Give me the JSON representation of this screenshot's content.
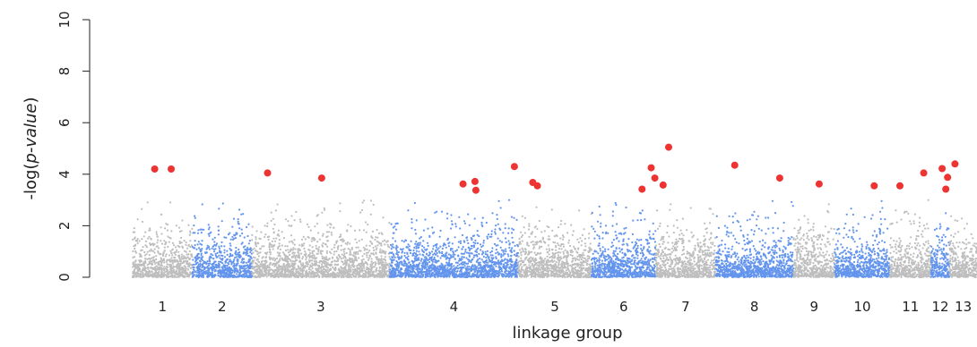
{
  "chart_data": {
    "type": "scatter",
    "title": "",
    "xlabel": "linkage group",
    "ylabel_prefix": "-log(",
    "ylabel_italic": "p-value",
    "ylabel_suffix": ")",
    "ylim": [
      0,
      10
    ],
    "yticks": [
      0,
      2,
      4,
      6,
      8,
      10
    ],
    "grid": false,
    "legend": "none",
    "colors": {
      "odd_group": "#bebebe",
      "even_group": "#6495ed",
      "significant": "#ee3333"
    },
    "linkage_groups": [
      {
        "label": "1",
        "start": 0,
        "end": 6.5
      },
      {
        "label": "2",
        "start": 6.5,
        "end": 13.0
      },
      {
        "label": "3",
        "start": 13.0,
        "end": 28.0
      },
      {
        "label": "4",
        "start": 28.0,
        "end": 42.0
      },
      {
        "label": "5",
        "start": 42.0,
        "end": 50.0
      },
      {
        "label": "6",
        "start": 50.0,
        "end": 57.0
      },
      {
        "label": "7",
        "start": 57.0,
        "end": 63.5
      },
      {
        "label": "8",
        "start": 63.5,
        "end": 72.0
      },
      {
        "label": "9",
        "start": 72.0,
        "end": 76.5
      },
      {
        "label": "10",
        "start": 76.5,
        "end": 82.5
      },
      {
        "label": "11",
        "start": 82.5,
        "end": 87.0
      },
      {
        "label": "12",
        "start": 87.0,
        "end": 89.0
      },
      {
        "label": "13",
        "start": 89.0,
        "end": 92.0
      }
    ],
    "background_max": 3.0,
    "significant_points": [
      {
        "x": 2.4,
        "y": 4.2
      },
      {
        "x": 4.2,
        "y": 4.2
      },
      {
        "x": 14.7,
        "y": 4.05
      },
      {
        "x": 20.6,
        "y": 3.85
      },
      {
        "x": 36.0,
        "y": 3.62
      },
      {
        "x": 37.3,
        "y": 3.72
      },
      {
        "x": 37.4,
        "y": 3.38
      },
      {
        "x": 41.6,
        "y": 4.3
      },
      {
        "x": 43.6,
        "y": 3.68
      },
      {
        "x": 44.1,
        "y": 3.55
      },
      {
        "x": 55.5,
        "y": 3.42
      },
      {
        "x": 56.5,
        "y": 4.25
      },
      {
        "x": 56.9,
        "y": 3.85
      },
      {
        "x": 57.8,
        "y": 3.58
      },
      {
        "x": 58.4,
        "y": 5.05
      },
      {
        "x": 65.6,
        "y": 4.35
      },
      {
        "x": 70.5,
        "y": 3.85
      },
      {
        "x": 74.8,
        "y": 3.62
      },
      {
        "x": 80.8,
        "y": 3.55
      },
      {
        "x": 83.6,
        "y": 3.55
      },
      {
        "x": 86.2,
        "y": 4.05
      },
      {
        "x": 88.2,
        "y": 4.22
      },
      {
        "x": 88.8,
        "y": 3.88
      },
      {
        "x": 88.6,
        "y": 3.42
      },
      {
        "x": 89.6,
        "y": 4.4
      }
    ]
  }
}
